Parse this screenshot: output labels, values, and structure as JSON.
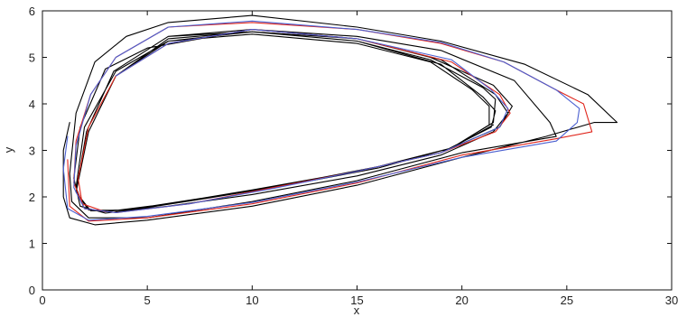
{
  "chart_data": {
    "type": "line",
    "title": "",
    "xlabel": "x",
    "ylabel": "y",
    "xlim": [
      0,
      30
    ],
    "ylim": [
      0,
      6
    ],
    "xticks": [
      0,
      5,
      10,
      15,
      20,
      25,
      30
    ],
    "yticks": [
      0,
      1,
      2,
      3,
      4,
      5,
      6
    ],
    "grid": false,
    "legend": "none",
    "series": [
      {
        "color": "#000000",
        "values": [
          [
            1.3,
            3.6
          ],
          [
            1.0,
            3.0
          ],
          [
            1.0,
            2.0
          ],
          [
            1.3,
            1.55
          ],
          [
            2.5,
            1.4
          ],
          [
            5,
            1.5
          ],
          [
            10,
            1.8
          ],
          [
            15,
            2.25
          ],
          [
            20,
            2.85
          ],
          [
            24,
            3.3
          ],
          [
            26.3,
            3.6
          ],
          [
            27.4,
            3.6
          ],
          [
            26,
            4.2
          ],
          [
            23,
            4.85
          ],
          [
            19,
            5.35
          ],
          [
            15,
            5.65
          ],
          [
            10,
            5.9
          ],
          [
            6,
            5.75
          ],
          [
            4,
            5.45
          ],
          [
            2.5,
            4.9
          ],
          [
            1.6,
            3.8
          ],
          [
            1.3,
            2.5
          ],
          [
            1.4,
            1.9
          ],
          [
            2.2,
            1.55
          ],
          [
            5,
            1.55
          ],
          [
            10,
            1.9
          ],
          [
            15,
            2.35
          ],
          [
            20,
            2.95
          ],
          [
            24.5,
            3.3
          ],
          [
            24.2,
            3.6
          ],
          [
            22.5,
            4.5
          ],
          [
            19,
            5.15
          ],
          [
            15,
            5.45
          ],
          [
            10,
            5.6
          ],
          [
            5,
            5.2
          ],
          [
            3,
            4.75
          ],
          [
            1.8,
            3.5
          ],
          [
            1.5,
            2.4
          ],
          [
            1.8,
            1.8
          ],
          [
            3,
            1.65
          ],
          [
            6,
            1.8
          ],
          [
            10,
            2.05
          ],
          [
            15,
            2.45
          ],
          [
            19,
            2.9
          ],
          [
            21.5,
            3.4
          ],
          [
            22.2,
            3.8
          ],
          [
            21.6,
            4.2
          ],
          [
            19,
            4.95
          ],
          [
            15,
            5.4
          ],
          [
            10,
            5.55
          ],
          [
            6,
            5.35
          ],
          [
            3.5,
            4.7
          ],
          [
            2,
            3.5
          ],
          [
            1.6,
            2.2
          ],
          [
            2,
            1.75
          ],
          [
            3,
            1.68
          ],
          [
            6,
            1.85
          ],
          [
            10,
            2.15
          ],
          [
            15,
            2.55
          ],
          [
            19,
            2.95
          ],
          [
            21.4,
            3.5
          ],
          [
            21.6,
            3.85
          ],
          [
            21,
            4.15
          ],
          [
            19,
            4.85
          ],
          [
            15,
            5.35
          ],
          [
            10,
            5.55
          ],
          [
            6,
            5.4
          ],
          [
            3.5,
            4.6
          ],
          [
            2.2,
            3.4
          ],
          [
            1.6,
            2.1
          ],
          [
            2.3,
            1.7
          ],
          [
            4,
            1.72
          ],
          [
            8,
            2.0
          ],
          [
            12,
            2.3
          ],
          [
            16,
            2.65
          ],
          [
            19.5,
            3.05
          ],
          [
            21.3,
            3.55
          ],
          [
            21.3,
            3.95
          ],
          [
            20.5,
            4.3
          ],
          [
            18.5,
            4.9
          ],
          [
            15,
            5.3
          ],
          [
            10,
            5.5
          ],
          [
            6,
            5.35
          ],
          [
            3.5,
            4.6
          ],
          [
            2.2,
            3.4
          ],
          [
            1.6,
            2.1
          ],
          [
            2.3,
            1.7
          ],
          [
            4,
            1.72
          ],
          [
            8,
            2.0
          ],
          [
            12,
            2.3
          ],
          [
            16,
            2.65
          ],
          [
            19.5,
            3.05
          ],
          [
            21.5,
            3.6
          ],
          [
            21.6,
            4.1
          ],
          [
            21,
            4.35
          ],
          [
            18.5,
            4.95
          ],
          [
            15,
            5.35
          ],
          [
            10,
            5.55
          ],
          [
            6,
            5.45
          ],
          [
            3.4,
            4.7
          ],
          [
            2.1,
            3.4
          ],
          [
            1.6,
            2.1
          ],
          [
            2.2,
            1.72
          ],
          [
            4,
            1.7
          ],
          [
            8,
            1.98
          ],
          [
            12,
            2.28
          ],
          [
            16,
            2.62
          ],
          [
            19.5,
            3.05
          ],
          [
            21.8,
            3.5
          ],
          [
            22.4,
            3.95
          ],
          [
            21.5,
            4.4
          ],
          [
            18.5,
            5.0
          ],
          [
            15,
            5.4
          ],
          [
            10,
            5.6
          ],
          [
            6,
            5.45
          ],
          [
            3.4,
            4.7
          ],
          [
            2.1,
            3.4
          ],
          [
            1.6,
            2.1
          ],
          [
            2.2,
            1.72
          ],
          [
            4,
            1.7
          ],
          [
            8,
            1.98
          ],
          [
            12,
            2.28
          ],
          [
            16,
            2.62
          ],
          [
            19.5,
            3.05
          ],
          [
            21.5,
            3.55
          ]
        ]
      },
      {
        "color": "#e0261c",
        "values": [
          [
            1.2,
            2.8
          ],
          [
            1.3,
            1.8
          ],
          [
            2.2,
            1.48
          ],
          [
            5,
            1.55
          ],
          [
            10,
            1.85
          ],
          [
            15,
            2.3
          ],
          [
            20,
            2.9
          ],
          [
            24.5,
            3.25
          ],
          [
            26.2,
            3.4
          ],
          [
            25.8,
            4.0
          ],
          [
            24.5,
            4.3
          ],
          [
            22,
            4.9
          ],
          [
            19,
            5.3
          ],
          [
            15,
            5.6
          ],
          [
            10,
            5.75
          ],
          [
            6,
            5.65
          ],
          [
            3.5,
            5.0
          ],
          [
            2.3,
            4.2
          ],
          [
            1.6,
            3.2
          ],
          [
            1.5,
            2.3
          ],
          [
            2.0,
            1.75
          ],
          [
            3.5,
            1.66
          ],
          [
            7,
            1.85
          ],
          [
            11,
            2.2
          ],
          [
            15,
            2.55
          ],
          [
            19,
            2.95
          ],
          [
            21.6,
            3.4
          ],
          [
            22.3,
            3.8
          ],
          [
            21.8,
            4.2
          ],
          [
            19.5,
            4.9
          ],
          [
            15,
            5.4
          ],
          [
            10,
            5.6
          ],
          [
            6,
            5.3
          ],
          [
            3.5,
            4.6
          ],
          [
            2.2,
            3.5
          ],
          [
            1.7,
            2.4
          ],
          [
            1.9,
            1.85
          ],
          [
            3,
            1.68
          ]
        ]
      },
      {
        "color": "#4a5fd0",
        "values": [
          [
            1.2,
            3.3
          ],
          [
            1.0,
            2.6
          ],
          [
            1.2,
            1.75
          ],
          [
            2.2,
            1.5
          ],
          [
            5,
            1.58
          ],
          [
            10,
            1.88
          ],
          [
            15,
            2.32
          ],
          [
            20,
            2.85
          ],
          [
            24.5,
            3.2
          ],
          [
            25.5,
            3.6
          ],
          [
            25.6,
            3.9
          ],
          [
            24.5,
            4.3
          ],
          [
            22,
            4.9
          ],
          [
            19,
            5.32
          ],
          [
            15,
            5.6
          ],
          [
            10,
            5.78
          ],
          [
            6,
            5.65
          ],
          [
            3.5,
            5.0
          ],
          [
            2.3,
            4.2
          ],
          [
            1.6,
            3.1
          ],
          [
            1.5,
            2.2
          ],
          [
            2.0,
            1.75
          ],
          [
            3.5,
            1.66
          ],
          [
            7,
            1.85
          ],
          [
            11,
            2.18
          ],
          [
            15,
            2.55
          ],
          [
            19,
            2.95
          ],
          [
            21.8,
            3.5
          ],
          [
            22.2,
            3.9
          ],
          [
            21.4,
            4.3
          ],
          [
            19.5,
            4.95
          ],
          [
            15,
            5.4
          ],
          [
            10,
            5.6
          ],
          [
            6,
            5.3
          ],
          [
            3.5,
            4.6
          ]
        ]
      }
    ]
  }
}
